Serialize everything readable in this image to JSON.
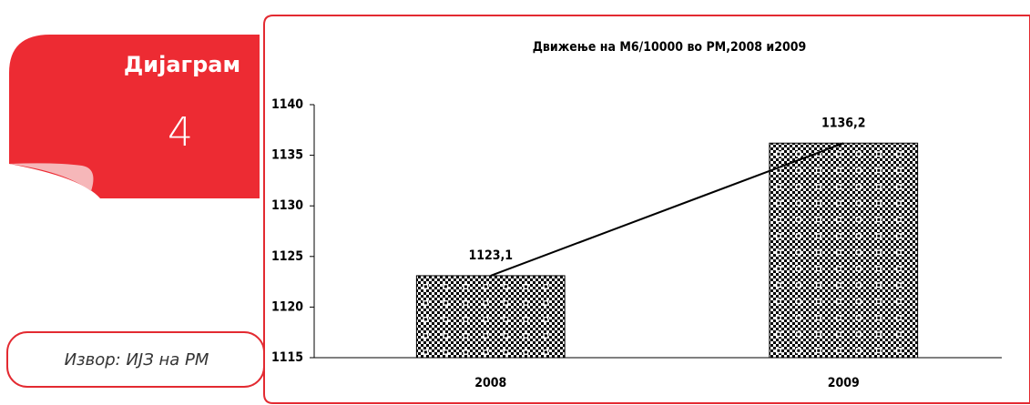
{
  "panel": {
    "label": "Дијаграм",
    "number": "4",
    "source": "Извор: ИЈЗ на РМ"
  },
  "chart_data": {
    "type": "bar",
    "title": "Движење на М6/10000  во РМ,2008 и2009",
    "categories": [
      "2008",
      "2009"
    ],
    "values": [
      1123.1,
      1136.2
    ],
    "value_labels": [
      "1123,1",
      "1136,2"
    ],
    "color": "#000000",
    "connecting_line": true,
    "ylim": [
      1115,
      1140
    ],
    "yticks": [
      1115,
      1120,
      1125,
      1130,
      1135,
      1140
    ]
  }
}
